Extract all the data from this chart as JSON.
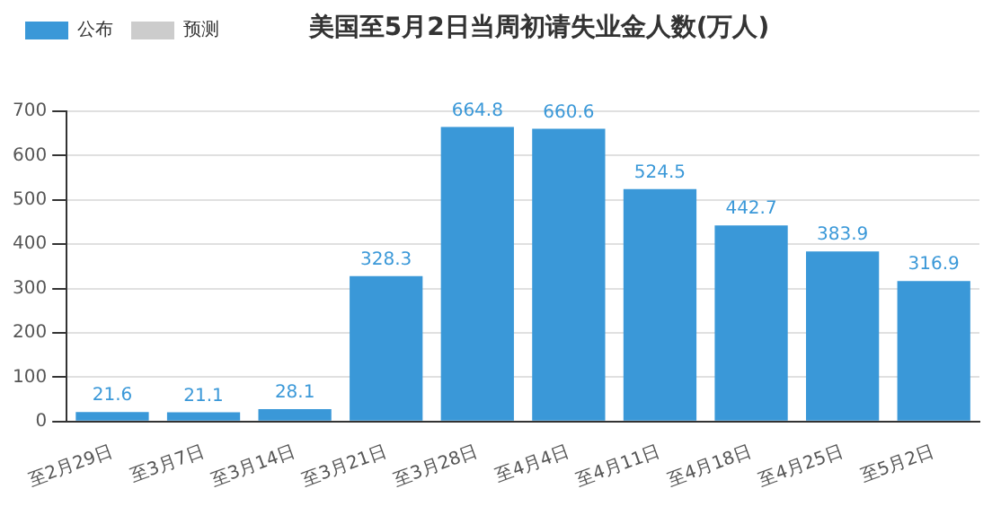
{
  "chart_data": {
    "type": "bar",
    "title": "美国至5月2日当周初请失业金人数(万人)",
    "categories": [
      "至2月29日",
      "至3月7日",
      "至3月14日",
      "至3月21日",
      "至3月28日",
      "至4月4日",
      "至4月11日",
      "至4月18日",
      "至4月25日",
      "至5月2日"
    ],
    "series": [
      {
        "name": "公布",
        "color": "#3a98d8",
        "values": [
          21.6,
          21.1,
          28.1,
          328.3,
          664.8,
          660.6,
          524.5,
          442.7,
          383.9,
          316.9
        ]
      },
      {
        "name": "预测",
        "color": "#cccccc",
        "values": [
          null,
          null,
          null,
          null,
          null,
          null,
          null,
          null,
          null,
          null
        ]
      }
    ],
    "ylim": [
      0,
      700
    ],
    "yticks": [
      0,
      100,
      200,
      300,
      400,
      500,
      600,
      700
    ],
    "grid": "y",
    "legend": "top left",
    "data_labels": true
  }
}
